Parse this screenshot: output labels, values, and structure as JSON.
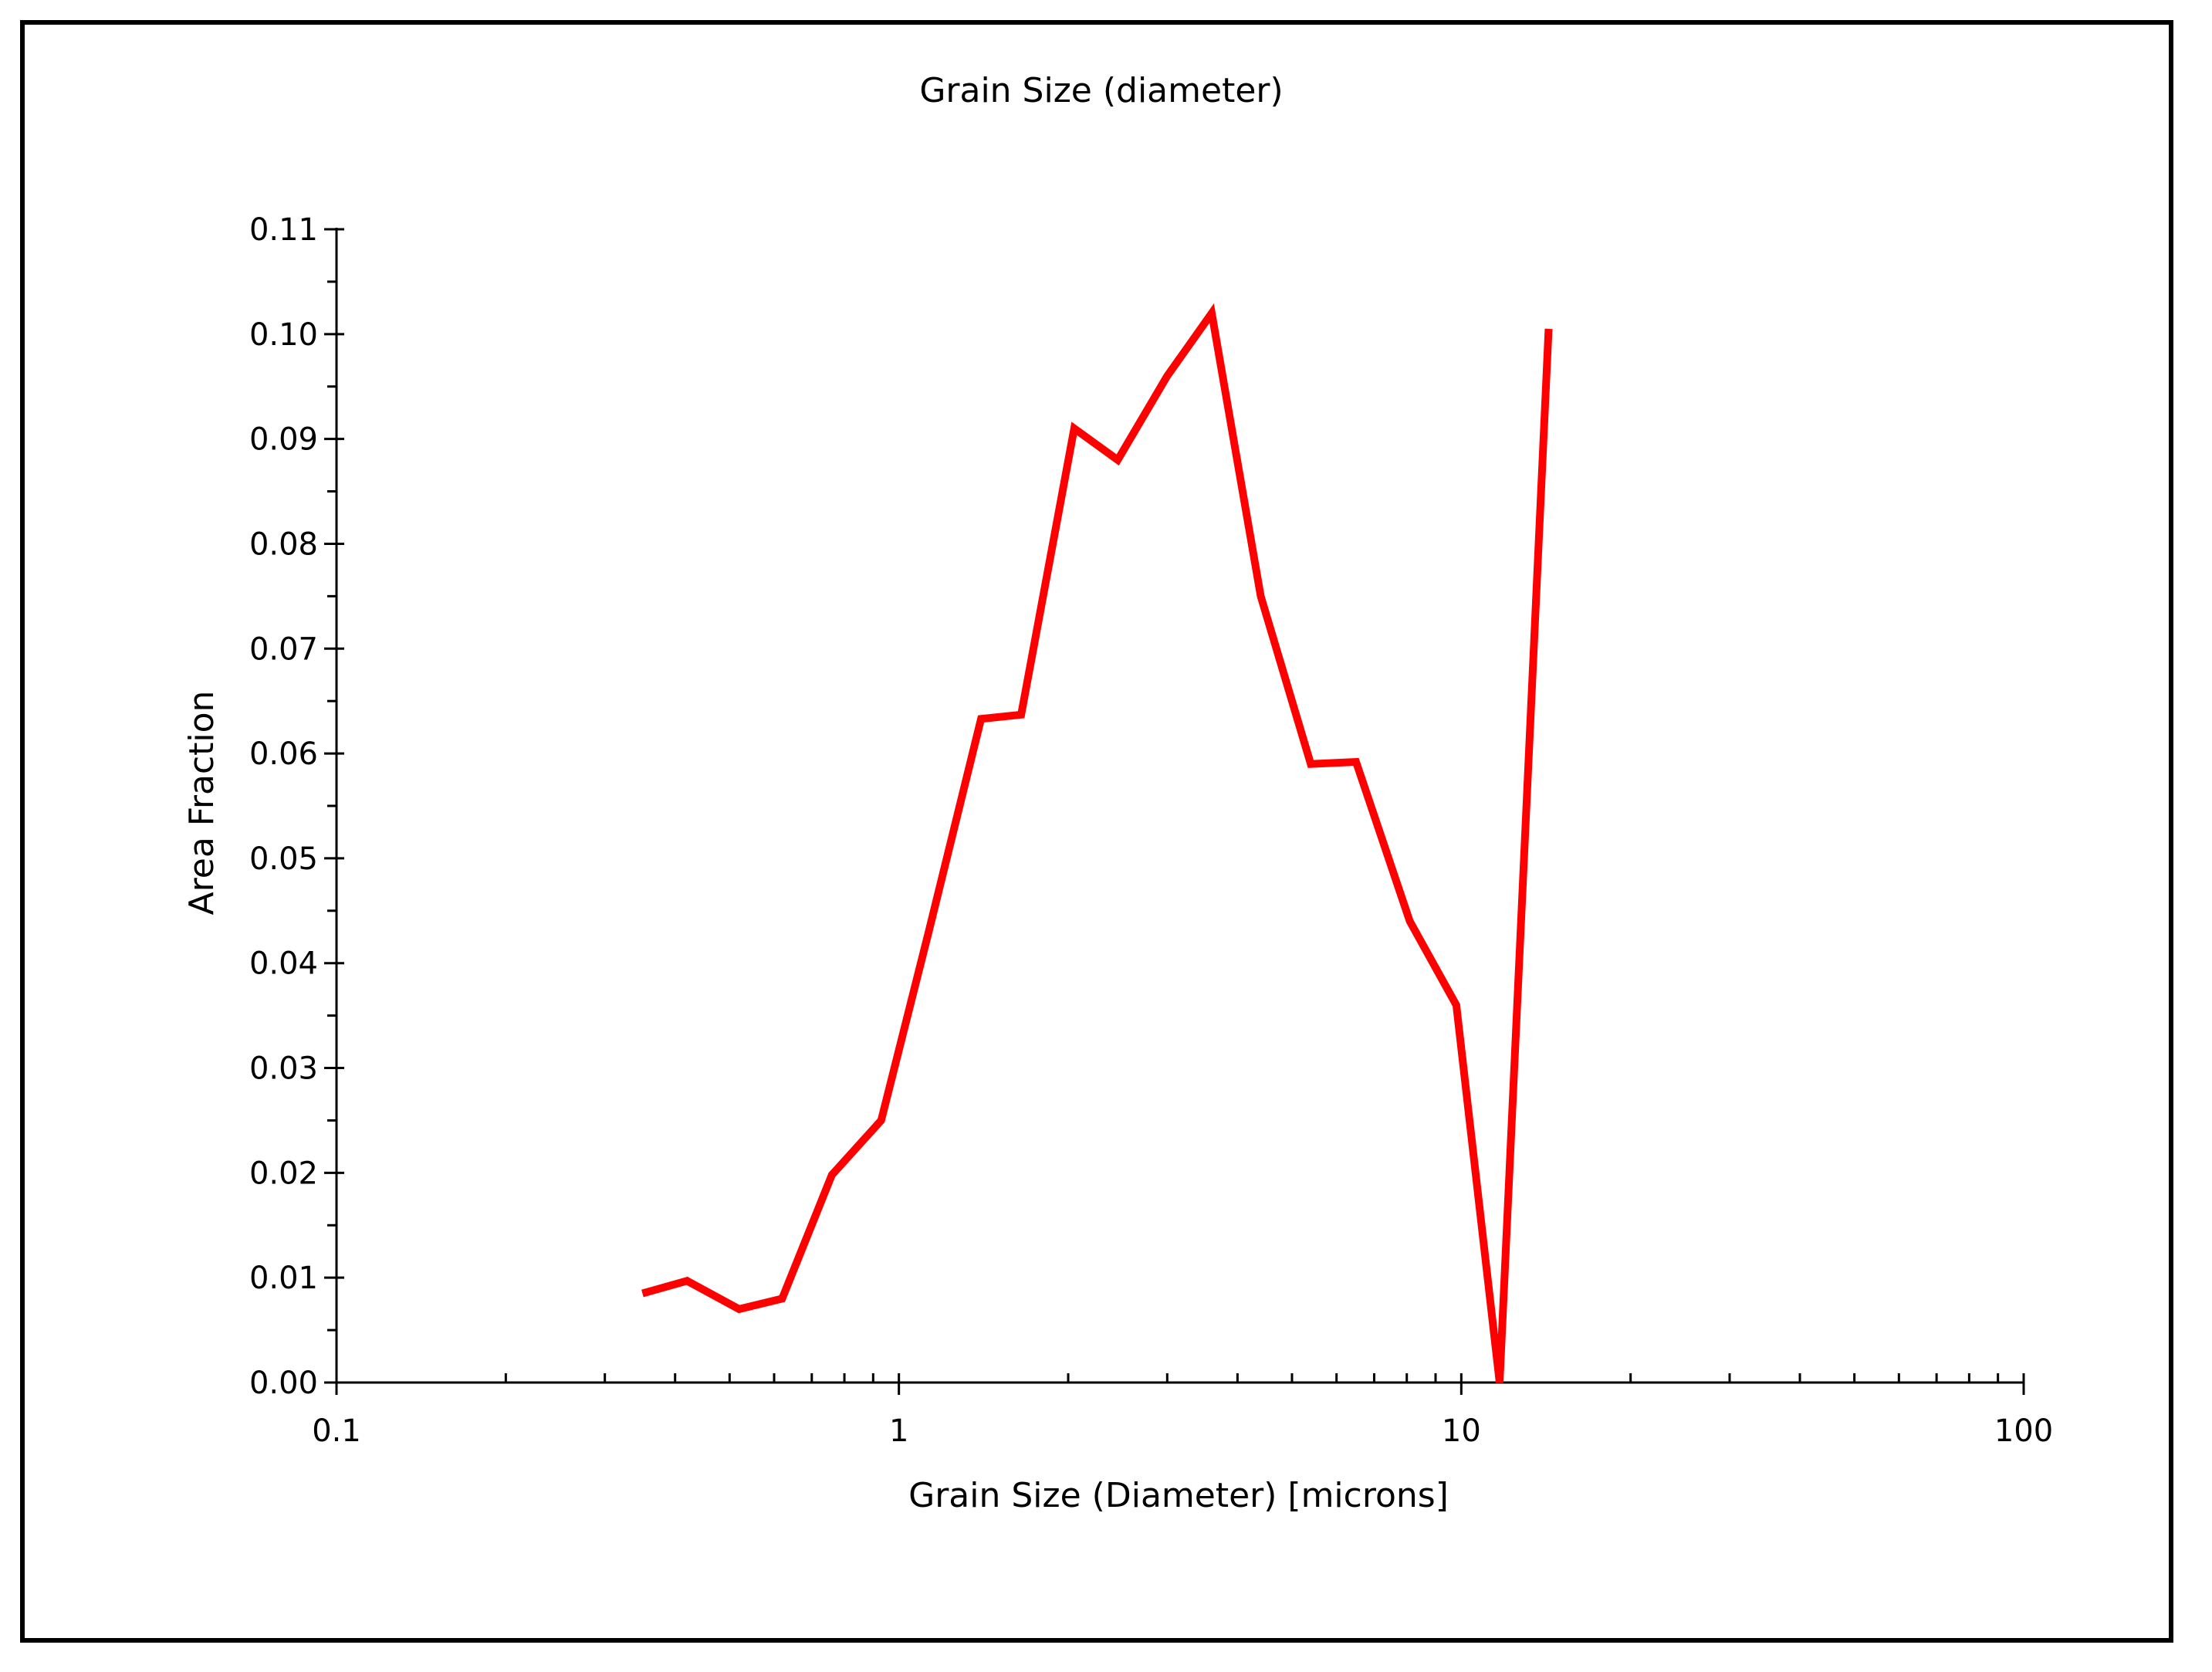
{
  "chart_data": {
    "type": "line",
    "title": "Grain Size (diameter)",
    "xlabel": "Grain Size (Diameter) [microns]",
    "ylabel": "Area Fraction",
    "x_scale": "log",
    "xlim": [
      0.1,
      100
    ],
    "ylim": [
      0,
      0.11
    ],
    "x_ticks": [
      {
        "value": 0.1,
        "label": "0.1"
      },
      {
        "value": 1,
        "label": "1"
      },
      {
        "value": 10,
        "label": "10"
      },
      {
        "value": 100,
        "label": "100"
      }
    ],
    "y_ticks": [
      {
        "value": 0.0,
        "label": "0.00"
      },
      {
        "value": 0.01,
        "label": "0.01"
      },
      {
        "value": 0.02,
        "label": "0.02"
      },
      {
        "value": 0.03,
        "label": "0.03"
      },
      {
        "value": 0.04,
        "label": "0.04"
      },
      {
        "value": 0.05,
        "label": "0.05"
      },
      {
        "value": 0.06,
        "label": "0.06"
      },
      {
        "value": 0.07,
        "label": "0.07"
      },
      {
        "value": 0.08,
        "label": "0.08"
      },
      {
        "value": 0.09,
        "label": "0.09"
      },
      {
        "value": 0.1,
        "label": "0.10"
      },
      {
        "value": 0.11,
        "label": "0.11"
      }
    ],
    "grid": false,
    "legend": "none",
    "series": [
      {
        "color": "#ff0000",
        "x": [
          0.35,
          0.42,
          0.52,
          0.62,
          0.76,
          0.93,
          1.13,
          1.4,
          1.65,
          2.05,
          2.45,
          3.0,
          3.6,
          4.4,
          5.4,
          6.5,
          8.1,
          9.8,
          11.7,
          14.3
        ],
        "y": [
          0.0085,
          0.0097,
          0.007,
          0.008,
          0.0198,
          0.025,
          0.043,
          0.0633,
          0.0637,
          0.091,
          0.088,
          0.096,
          0.102,
          0.075,
          0.059,
          0.0592,
          0.044,
          0.036,
          0.0,
          0.1005
        ]
      }
    ]
  }
}
